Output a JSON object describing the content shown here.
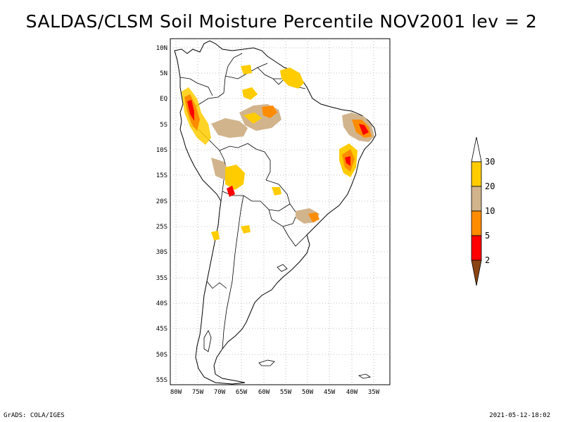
{
  "title": "SALDAS/CLSM Soil Moisture Percentile NOV2001 lev = 2",
  "footer": {
    "left": "GrADS: COLA/IGES",
    "right": "2021-05-12-18:02"
  },
  "map": {
    "lat_labels": [
      "10N",
      "5N",
      "EQ",
      "5S",
      "10S",
      "15S",
      "20S",
      "25S",
      "30S",
      "35S",
      "40S",
      "45S",
      "50S",
      "55S"
    ],
    "lon_labels": [
      "80W",
      "75W",
      "70W",
      "65W",
      "60W",
      "55W",
      "50W",
      "45W",
      "40W",
      "35W"
    ]
  },
  "colorbar": {
    "labels": [
      "30",
      "20",
      "10",
      "5",
      "2"
    ],
    "colors": {
      "top": "#ffffff",
      "gt30": "#ffcc00",
      "20to30": "#d2b48c",
      "10to20": "#ff8c00",
      "5to10": "#ff0000",
      "lt2": "#8b4513"
    }
  }
}
